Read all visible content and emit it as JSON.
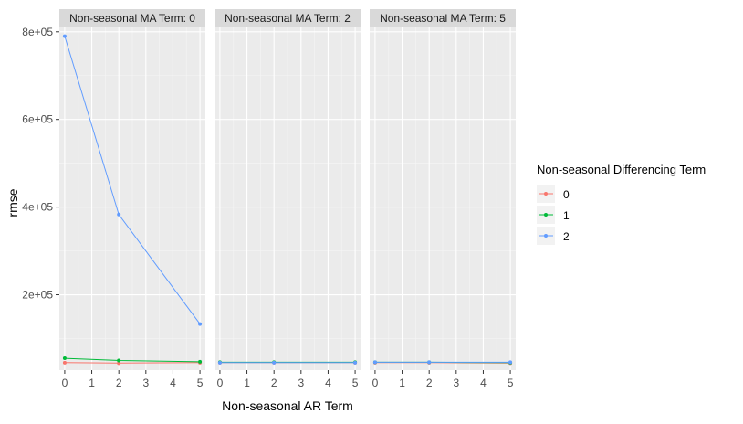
{
  "chart_data": {
    "type": "line",
    "xlabel": "Non-seasonal AR Term",
    "ylabel": "rmse",
    "x_ticks": [
      0,
      1,
      2,
      3,
      4,
      5
    ],
    "y_ticks": [
      200000,
      400000,
      600000,
      800000
    ],
    "y_tick_labels": [
      "2e+05",
      "4e+05",
      "6e+05",
      "8e+05"
    ],
    "xlim": [
      -0.2,
      5.2
    ],
    "ylim": [
      28000,
      810000
    ],
    "grid": true,
    "legend_position": "right",
    "legend_title": "Non-seasonal Differencing Term",
    "series_names": [
      "0",
      "1",
      "2"
    ],
    "series_colors": [
      "#F8766D",
      "#00BA38",
      "#619CFF"
    ],
    "panels": [
      {
        "strip": "Non-seasonal MA Term: 0",
        "series": [
          {
            "name": "0",
            "x": [
              0,
              2,
              5
            ],
            "y": [
              45000,
              44000,
              45000
            ]
          },
          {
            "name": "1",
            "x": [
              0,
              2,
              5
            ],
            "y": [
              55000,
              50000,
              47000
            ]
          },
          {
            "name": "2",
            "x": [
              0,
              2,
              5
            ],
            "y": [
              790000,
              383000,
              133000
            ]
          }
        ]
      },
      {
        "strip": "Non-seasonal MA Term: 2",
        "series": [
          {
            "name": "0",
            "x": [
              0,
              2,
              5
            ],
            "y": [
              45000,
              45000,
              45000
            ]
          },
          {
            "name": "1",
            "x": [
              0,
              2,
              5
            ],
            "y": [
              46000,
              46000,
              46000
            ]
          },
          {
            "name": "2",
            "x": [
              0,
              2,
              5
            ],
            "y": [
              45000,
              45000,
              45000
            ]
          }
        ]
      },
      {
        "strip": "Non-seasonal MA Term: 5",
        "series": [
          {
            "name": "0",
            "x": [
              0,
              2,
              5
            ],
            "y": [
              45000,
              45000,
              44000
            ]
          },
          {
            "name": "1",
            "x": [
              0,
              2,
              5
            ],
            "y": [
              46000,
              46000,
              45000
            ]
          },
          {
            "name": "2",
            "x": [
              0,
              2,
              5
            ],
            "y": [
              46000,
              46000,
              46000
            ]
          }
        ]
      }
    ]
  }
}
